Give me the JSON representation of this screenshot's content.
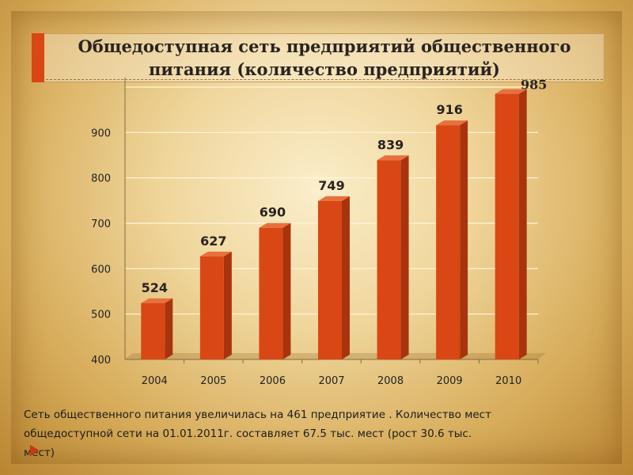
{
  "title": {
    "line1": "Общедоступная сеть предприятий общественного",
    "line2": "питания (количество предприятий)"
  },
  "chart_data": {
    "type": "bar",
    "categories": [
      "2004",
      "2005",
      "2006",
      "2007",
      "2008",
      "2009",
      "2010"
    ],
    "values": [
      524,
      627,
      690,
      749,
      839,
      916,
      985
    ],
    "data_labels": [
      "524",
      "627",
      "690",
      "749",
      "839",
      "916",
      "985"
    ],
    "ylim": [
      400,
      1000
    ],
    "yticks": [
      "400",
      "500",
      "600",
      "700",
      "800",
      "900"
    ],
    "grid": true,
    "bar_color": "#d94714",
    "bar_dark_color": "#a8340e",
    "bar_top_color": "#e8703c"
  },
  "footer": {
    "line1": " Сеть общественного питания  увеличилась на 461 предприятие . Количество мест",
    "line2": "общедоступной сети    на 01.01.2011г. составляет  67.5 тыс. мест (рост 30.6 тыс.",
    "line3": "мест)"
  }
}
